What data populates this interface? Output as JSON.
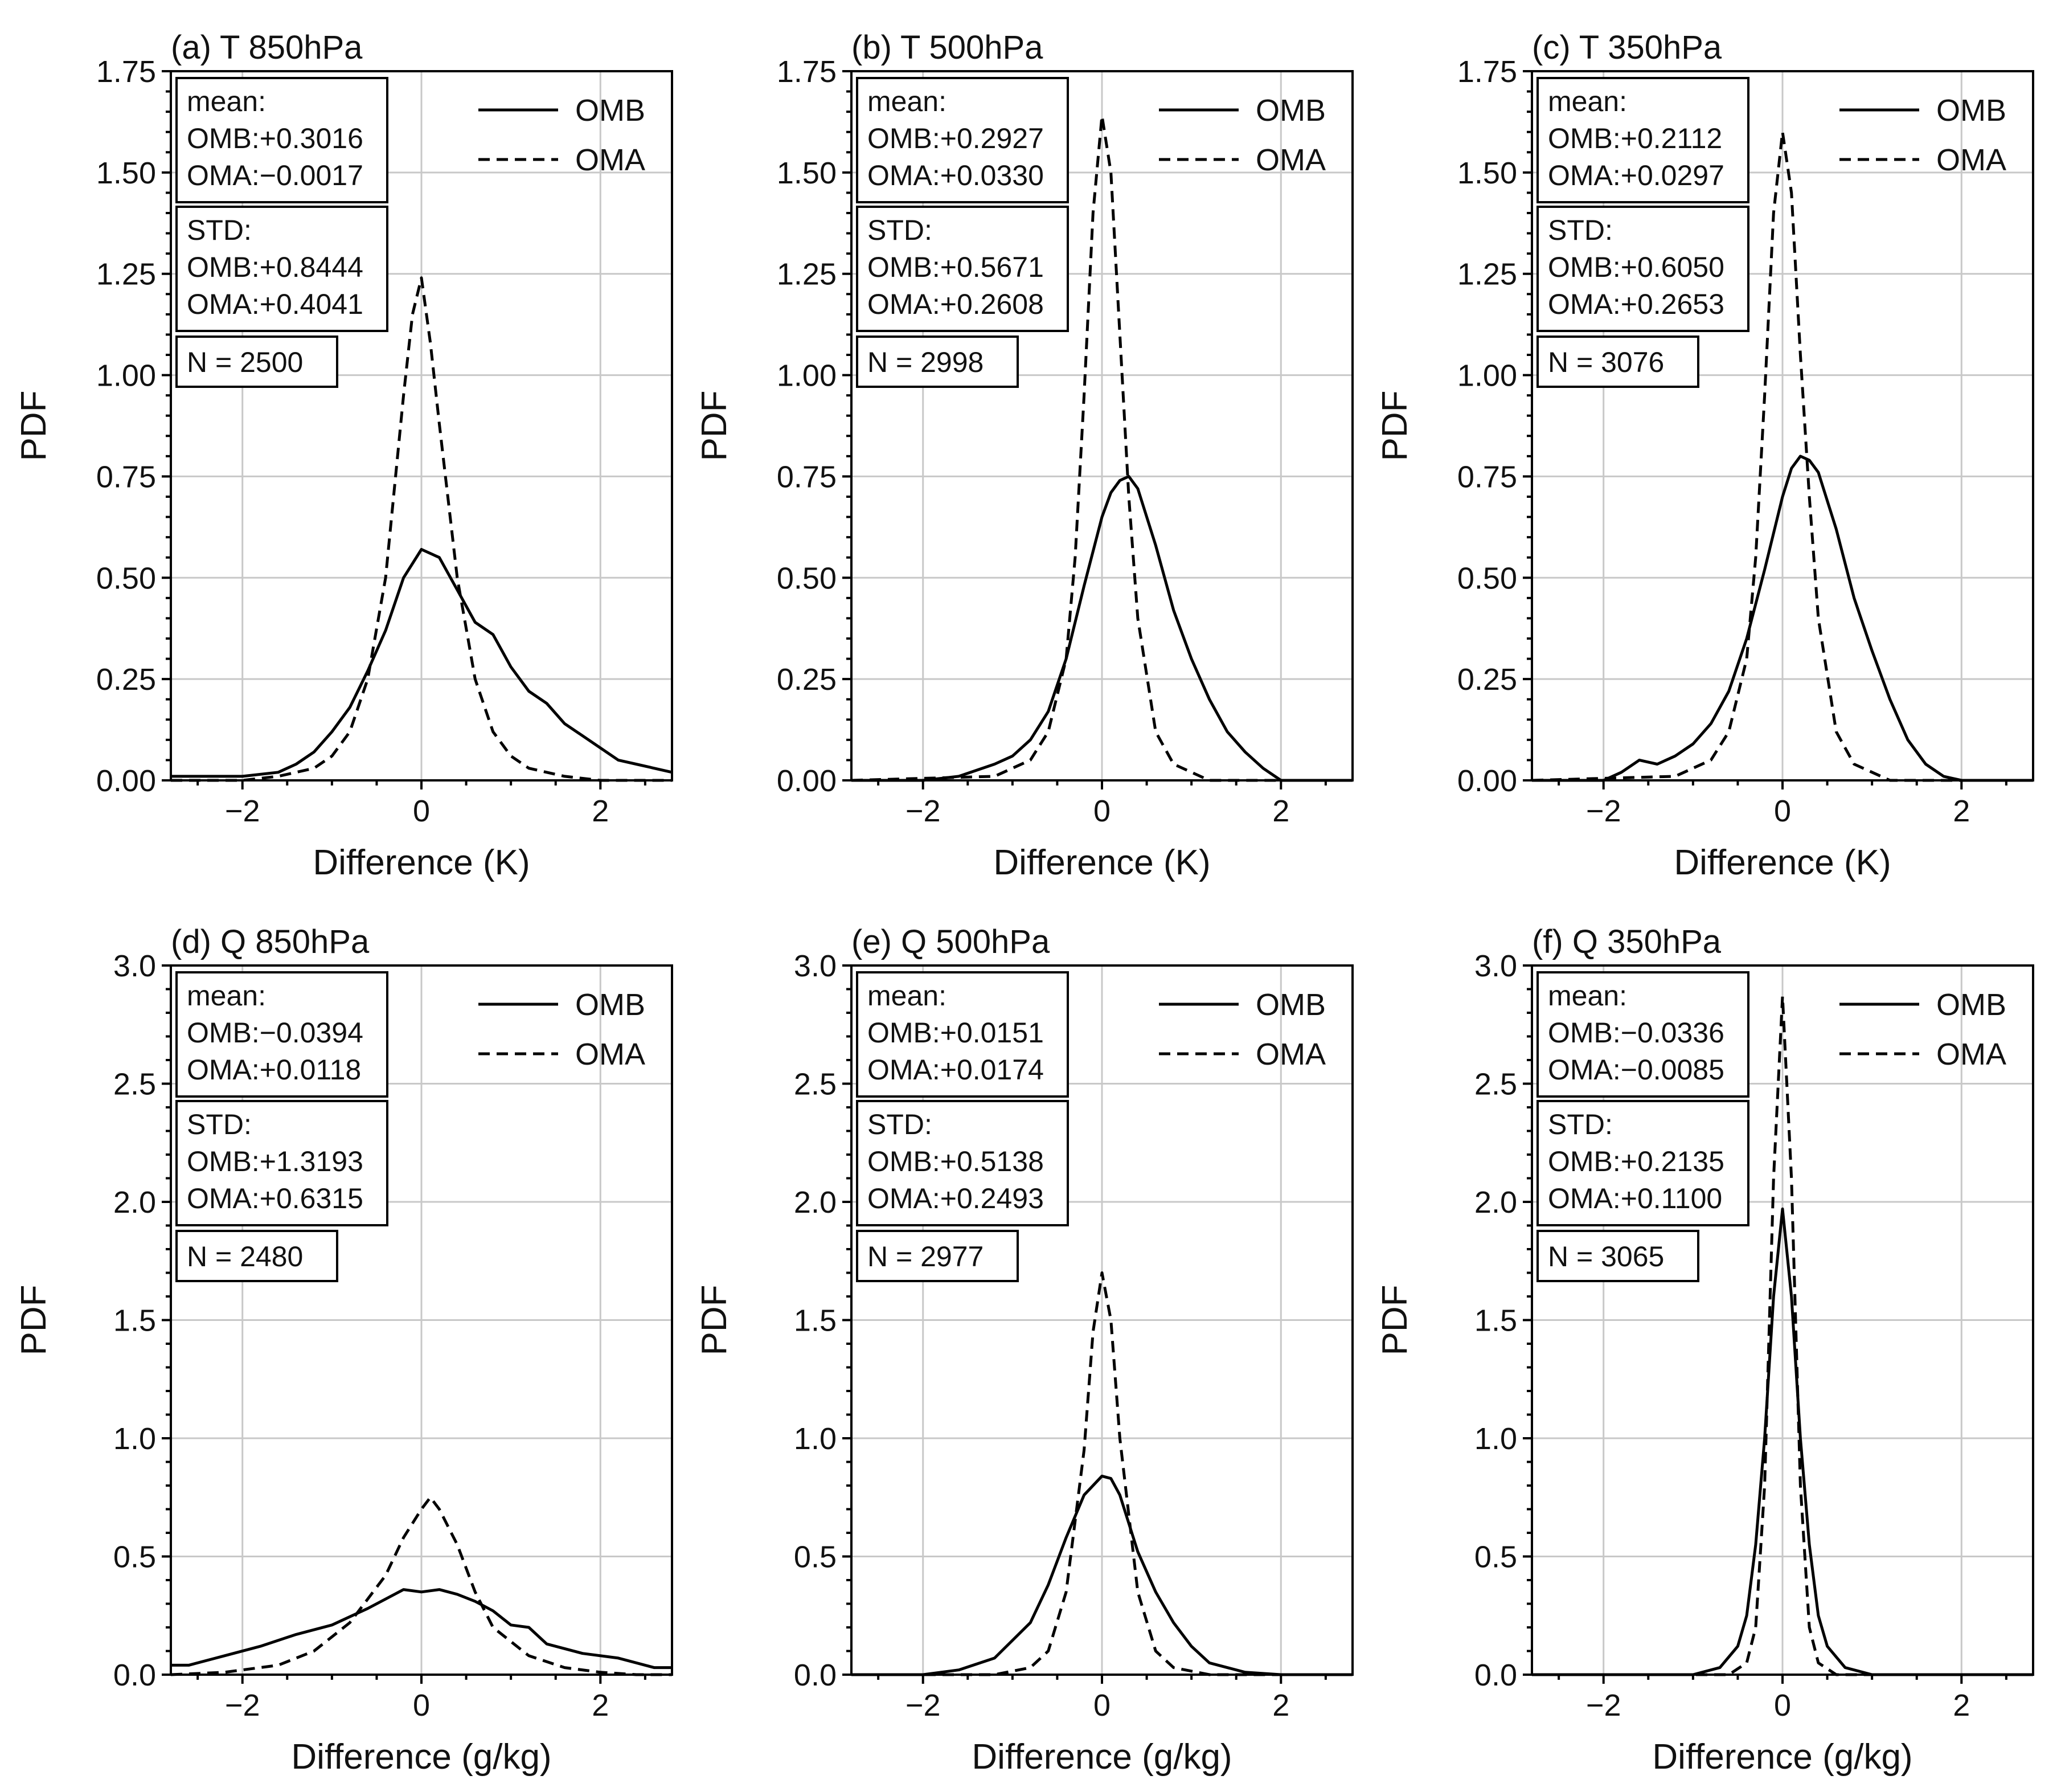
{
  "chart_data": [
    {
      "type": "line",
      "panel_title": "(a) T 850hPa",
      "xlabel": "Difference (K)",
      "ylabel": "PDF",
      "xlim": [
        -2.8,
        2.8
      ],
      "ylim": [
        0,
        1.75
      ],
      "xticks": [
        -2,
        0,
        2
      ],
      "xtick_labels": [
        "−2",
        "0",
        "2"
      ],
      "yticks": [
        0,
        0.25,
        0.5,
        0.75,
        1.0,
        1.25,
        1.5,
        1.75
      ],
      "ytick_labels": [
        "0.00",
        "0.25",
        "0.50",
        "0.75",
        "1.00",
        "1.25",
        "1.50",
        "1.75"
      ],
      "grid": true,
      "legend_position": "top-right",
      "series": [
        {
          "name": "OMB",
          "style": "solid",
          "x": [
            -2.8,
            -2.4,
            -2.0,
            -1.6,
            -1.4,
            -1.2,
            -1.0,
            -0.8,
            -0.6,
            -0.4,
            -0.2,
            0.0,
            0.2,
            0.4,
            0.6,
            0.8,
            1.0,
            1.2,
            1.4,
            1.6,
            1.8,
            2.0,
            2.2,
            2.4,
            2.8
          ],
          "y": [
            0.01,
            0.01,
            0.01,
            0.02,
            0.04,
            0.07,
            0.12,
            0.18,
            0.27,
            0.37,
            0.5,
            0.57,
            0.55,
            0.47,
            0.39,
            0.36,
            0.28,
            0.22,
            0.19,
            0.14,
            0.11,
            0.08,
            0.05,
            0.04,
            0.02
          ]
        },
        {
          "name": "OMA",
          "style": "dashed",
          "x": [
            -2.8,
            -2.0,
            -1.6,
            -1.2,
            -1.0,
            -0.8,
            -0.6,
            -0.4,
            -0.2,
            -0.1,
            0.0,
            0.1,
            0.2,
            0.4,
            0.6,
            0.8,
            1.0,
            1.2,
            1.6,
            2.0,
            2.8
          ],
          "y": [
            0.0,
            0.0,
            0.01,
            0.03,
            0.06,
            0.12,
            0.25,
            0.5,
            0.95,
            1.15,
            1.24,
            1.08,
            0.88,
            0.5,
            0.25,
            0.12,
            0.06,
            0.03,
            0.01,
            0.0,
            0.0
          ]
        }
      ],
      "legend": [
        "OMB",
        "OMA"
      ],
      "stats": {
        "mean_label": "mean:",
        "mean_omb": "OMB:+0.3016",
        "mean_oma": "OMA:−0.0017",
        "std_label": "STD:",
        "std_omb": "OMB:+0.8444",
        "std_oma": "OMA:+0.4041",
        "n": "N = 2500"
      }
    },
    {
      "type": "line",
      "panel_title": "(b) T 500hPa",
      "xlabel": "Difference (K)",
      "ylabel": "PDF",
      "xlim": [
        -2.8,
        2.8
      ],
      "ylim": [
        0,
        1.75
      ],
      "xticks": [
        -2,
        0,
        2
      ],
      "xtick_labels": [
        "−2",
        "0",
        "2"
      ],
      "yticks": [
        0,
        0.25,
        0.5,
        0.75,
        1.0,
        1.25,
        1.5,
        1.75
      ],
      "ytick_labels": [
        "0.00",
        "0.25",
        "0.50",
        "0.75",
        "1.00",
        "1.25",
        "1.50",
        "1.75"
      ],
      "grid": true,
      "legend_position": "top-right",
      "series": [
        {
          "name": "OMB",
          "style": "solid",
          "x": [
            -2.8,
            -2.0,
            -1.6,
            -1.2,
            -1.0,
            -0.8,
            -0.6,
            -0.4,
            -0.2,
            0.0,
            0.1,
            0.2,
            0.3,
            0.4,
            0.6,
            0.8,
            1.0,
            1.2,
            1.4,
            1.6,
            1.8,
            2.0,
            2.8
          ],
          "y": [
            0.0,
            0.0,
            0.01,
            0.04,
            0.06,
            0.1,
            0.17,
            0.3,
            0.48,
            0.65,
            0.71,
            0.74,
            0.75,
            0.72,
            0.58,
            0.42,
            0.3,
            0.2,
            0.12,
            0.07,
            0.03,
            0.0,
            0.0
          ]
        },
        {
          "name": "OMA",
          "style": "dashed",
          "x": [
            -2.8,
            -1.2,
            -0.8,
            -0.6,
            -0.4,
            -0.3,
            -0.2,
            -0.1,
            0.0,
            0.1,
            0.2,
            0.3,
            0.4,
            0.6,
            0.8,
            1.2,
            2.8
          ],
          "y": [
            0.0,
            0.01,
            0.05,
            0.12,
            0.3,
            0.55,
            0.95,
            1.4,
            1.64,
            1.5,
            1.1,
            0.7,
            0.4,
            0.12,
            0.04,
            0.0,
            0.0
          ]
        }
      ],
      "legend": [
        "OMB",
        "OMA"
      ],
      "stats": {
        "mean_label": "mean:",
        "mean_omb": "OMB:+0.2927",
        "mean_oma": "OMA:+0.0330",
        "std_label": "STD:",
        "std_omb": "OMB:+0.5671",
        "std_oma": "OMA:+0.2608",
        "n": "N = 2998"
      }
    },
    {
      "type": "line",
      "panel_title": "(c) T 350hPa",
      "xlabel": "Difference (K)",
      "ylabel": "PDF",
      "xlim": [
        -2.8,
        2.8
      ],
      "ylim": [
        0,
        1.75
      ],
      "xticks": [
        -2,
        0,
        2
      ],
      "xtick_labels": [
        "−2",
        "0",
        "2"
      ],
      "yticks": [
        0,
        0.25,
        0.5,
        0.75,
        1.0,
        1.25,
        1.5,
        1.75
      ],
      "ytick_labels": [
        "0.00",
        "0.25",
        "0.50",
        "0.75",
        "1.00",
        "1.25",
        "1.50",
        "1.75"
      ],
      "grid": true,
      "legend_position": "top-right",
      "series": [
        {
          "name": "OMB",
          "style": "solid",
          "x": [
            -2.8,
            -2.0,
            -1.8,
            -1.6,
            -1.4,
            -1.2,
            -1.0,
            -0.8,
            -0.6,
            -0.4,
            -0.2,
            0.0,
            0.1,
            0.2,
            0.3,
            0.4,
            0.6,
            0.8,
            1.0,
            1.2,
            1.4,
            1.6,
            1.8,
            2.0,
            2.8
          ],
          "y": [
            0.0,
            0.0,
            0.02,
            0.05,
            0.04,
            0.06,
            0.09,
            0.14,
            0.22,
            0.35,
            0.52,
            0.7,
            0.77,
            0.8,
            0.79,
            0.76,
            0.62,
            0.45,
            0.32,
            0.2,
            0.1,
            0.04,
            0.01,
            0.0,
            0.0
          ]
        },
        {
          "name": "OMA",
          "style": "dashed",
          "x": [
            -2.8,
            -1.2,
            -0.8,
            -0.6,
            -0.4,
            -0.3,
            -0.2,
            -0.1,
            0.0,
            0.1,
            0.2,
            0.3,
            0.4,
            0.6,
            0.8,
            1.2,
            2.8
          ],
          "y": [
            0.0,
            0.01,
            0.05,
            0.12,
            0.3,
            0.55,
            0.95,
            1.4,
            1.6,
            1.45,
            1.05,
            0.7,
            0.4,
            0.12,
            0.04,
            0.0,
            0.0
          ]
        }
      ],
      "legend": [
        "OMB",
        "OMA"
      ],
      "stats": {
        "mean_label": "mean:",
        "mean_omb": "OMB:+0.2112",
        "mean_oma": "OMA:+0.0297",
        "std_label": "STD:",
        "std_omb": "OMB:+0.6050",
        "std_oma": "OMA:+0.2653",
        "n": "N = 3076"
      }
    },
    {
      "type": "line",
      "panel_title": "(d) Q 850hPa",
      "xlabel": "Difference (g/kg)",
      "ylabel": "PDF",
      "xlim": [
        -2.8,
        2.8
      ],
      "ylim": [
        0,
        3.0
      ],
      "xticks": [
        -2,
        0,
        2
      ],
      "xtick_labels": [
        "−2",
        "0",
        "2"
      ],
      "yticks": [
        0,
        0.5,
        1.0,
        1.5,
        2.0,
        2.5,
        3.0
      ],
      "ytick_labels": [
        "0.0",
        "0.5",
        "1.0",
        "1.5",
        "2.0",
        "2.5",
        "3.0"
      ],
      "grid": true,
      "legend_position": "top-right",
      "series": [
        {
          "name": "OMB",
          "style": "solid",
          "x": [
            -2.8,
            -2.6,
            -2.2,
            -1.8,
            -1.4,
            -1.0,
            -0.6,
            -0.2,
            0.0,
            0.2,
            0.4,
            0.6,
            0.8,
            1.0,
            1.2,
            1.4,
            1.8,
            2.2,
            2.6,
            2.8
          ],
          "y": [
            0.04,
            0.04,
            0.08,
            0.12,
            0.17,
            0.21,
            0.28,
            0.36,
            0.35,
            0.36,
            0.34,
            0.31,
            0.27,
            0.21,
            0.2,
            0.13,
            0.09,
            0.07,
            0.03,
            0.03
          ]
        },
        {
          "name": "OMA",
          "style": "dashed",
          "x": [
            -2.8,
            -2.2,
            -1.6,
            -1.2,
            -0.8,
            -0.4,
            -0.2,
            0.0,
            0.1,
            0.2,
            0.4,
            0.6,
            0.8,
            1.2,
            1.6,
            2.0,
            2.4,
            2.8
          ],
          "y": [
            0.0,
            0.01,
            0.04,
            0.1,
            0.22,
            0.42,
            0.58,
            0.7,
            0.75,
            0.7,
            0.55,
            0.35,
            0.2,
            0.08,
            0.03,
            0.01,
            0.0,
            0.0
          ]
        }
      ],
      "legend": [
        "OMB",
        "OMA"
      ],
      "stats": {
        "mean_label": "mean:",
        "mean_omb": "OMB:−0.0394",
        "mean_oma": "OMA:+0.0118",
        "std_label": "STD:",
        "std_omb": "OMB:+1.3193",
        "std_oma": "OMA:+0.6315",
        "n": "N = 2480"
      }
    },
    {
      "type": "line",
      "panel_title": "(e) Q 500hPa",
      "xlabel": "Difference (g/kg)",
      "ylabel": "PDF",
      "xlim": [
        -2.8,
        2.8
      ],
      "ylim": [
        0,
        3.0
      ],
      "xticks": [
        -2,
        0,
        2
      ],
      "xtick_labels": [
        "−2",
        "0",
        "2"
      ],
      "yticks": [
        0,
        0.5,
        1.0,
        1.5,
        2.0,
        2.5,
        3.0
      ],
      "ytick_labels": [
        "0.0",
        "0.5",
        "1.0",
        "1.5",
        "2.0",
        "2.5",
        "3.0"
      ],
      "grid": true,
      "legend_position": "top-right",
      "series": [
        {
          "name": "OMB",
          "style": "solid",
          "x": [
            -2.8,
            -2.0,
            -1.6,
            -1.2,
            -0.8,
            -0.6,
            -0.4,
            -0.2,
            0.0,
            0.1,
            0.2,
            0.4,
            0.6,
            0.8,
            1.0,
            1.2,
            1.6,
            2.0,
            2.8
          ],
          "y": [
            0.0,
            0.0,
            0.02,
            0.07,
            0.22,
            0.38,
            0.58,
            0.76,
            0.84,
            0.83,
            0.76,
            0.52,
            0.35,
            0.22,
            0.12,
            0.05,
            0.01,
            0.0,
            0.0
          ]
        },
        {
          "name": "OMA",
          "style": "dashed",
          "x": [
            -2.8,
            -1.2,
            -0.8,
            -0.6,
            -0.4,
            -0.2,
            -0.1,
            0.0,
            0.1,
            0.2,
            0.4,
            0.6,
            0.8,
            1.2,
            2.8
          ],
          "y": [
            0.0,
            0.0,
            0.03,
            0.1,
            0.35,
            0.95,
            1.45,
            1.7,
            1.5,
            1.0,
            0.35,
            0.1,
            0.03,
            0.0,
            0.0
          ]
        }
      ],
      "legend": [
        "OMB",
        "OMA"
      ],
      "stats": {
        "mean_label": "mean:",
        "mean_omb": "OMB:+0.0151",
        "mean_oma": "OMA:+0.0174",
        "std_label": "STD:",
        "std_omb": "OMB:+0.5138",
        "std_oma": "OMA:+0.2493",
        "n": "N = 2977"
      }
    },
    {
      "type": "line",
      "panel_title": "(f) Q 350hPa",
      "xlabel": "Difference (g/kg)",
      "ylabel": "PDF",
      "xlim": [
        -2.8,
        2.8
      ],
      "ylim": [
        0,
        3.0
      ],
      "xticks": [
        -2,
        0,
        2
      ],
      "xtick_labels": [
        "−2",
        "0",
        "2"
      ],
      "yticks": [
        0,
        0.5,
        1.0,
        1.5,
        2.0,
        2.5,
        3.0
      ],
      "ytick_labels": [
        "0.0",
        "0.5",
        "1.0",
        "1.5",
        "2.0",
        "2.5",
        "3.0"
      ],
      "grid": true,
      "legend_position": "top-right",
      "series": [
        {
          "name": "OMB",
          "style": "solid",
          "x": [
            -2.8,
            -1.0,
            -0.7,
            -0.5,
            -0.4,
            -0.3,
            -0.2,
            -0.1,
            0.0,
            0.1,
            0.2,
            0.3,
            0.4,
            0.5,
            0.7,
            1.0,
            2.8
          ],
          "y": [
            0.0,
            0.0,
            0.03,
            0.12,
            0.25,
            0.55,
            1.0,
            1.6,
            1.97,
            1.6,
            1.0,
            0.55,
            0.25,
            0.12,
            0.03,
            0.0,
            0.0
          ]
        },
        {
          "name": "OMA",
          "style": "dashed",
          "x": [
            -2.8,
            -0.6,
            -0.4,
            -0.3,
            -0.2,
            -0.1,
            0.0,
            0.1,
            0.2,
            0.3,
            0.4,
            0.6,
            2.8
          ],
          "y": [
            0.0,
            0.0,
            0.05,
            0.2,
            0.8,
            2.1,
            2.87,
            2.1,
            0.8,
            0.2,
            0.05,
            0.0,
            0.0
          ]
        }
      ],
      "legend": [
        "OMB",
        "OMA"
      ],
      "stats": {
        "mean_label": "mean:",
        "mean_omb": "OMB:−0.0336",
        "mean_oma": "OMA:−0.0085",
        "std_label": "STD:",
        "std_omb": "OMB:+0.2135",
        "std_oma": "OMA:+0.1100",
        "n": "N = 3065"
      }
    }
  ]
}
